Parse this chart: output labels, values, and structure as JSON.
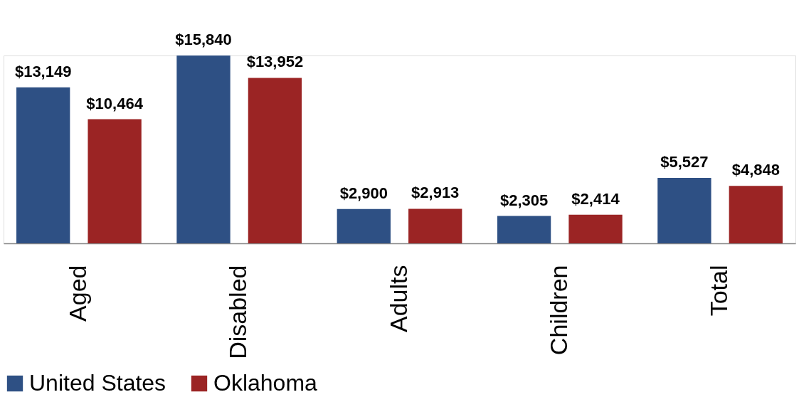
{
  "chart_data": {
    "type": "bar",
    "categories": [
      "Aged",
      "Disabled",
      "Adults",
      "Children",
      "Total"
    ],
    "series": [
      {
        "name": "United States",
        "color": "#2e5084",
        "values": [
          13149,
          15840,
          2900,
          2305,
          5527
        ],
        "value_labels": [
          "$13,149",
          "$15,840",
          "$2,900",
          "$2,305",
          "$5,527"
        ]
      },
      {
        "name": "Oklahoma",
        "color": "#9b2424",
        "values": [
          10464,
          13952,
          2913,
          2414,
          4848
        ],
        "value_labels": [
          "$10,464",
          "$13,952",
          "$2,913",
          "$2,414",
          "$4,848"
        ]
      }
    ],
    "legend": "bottom",
    "grid": false
  }
}
